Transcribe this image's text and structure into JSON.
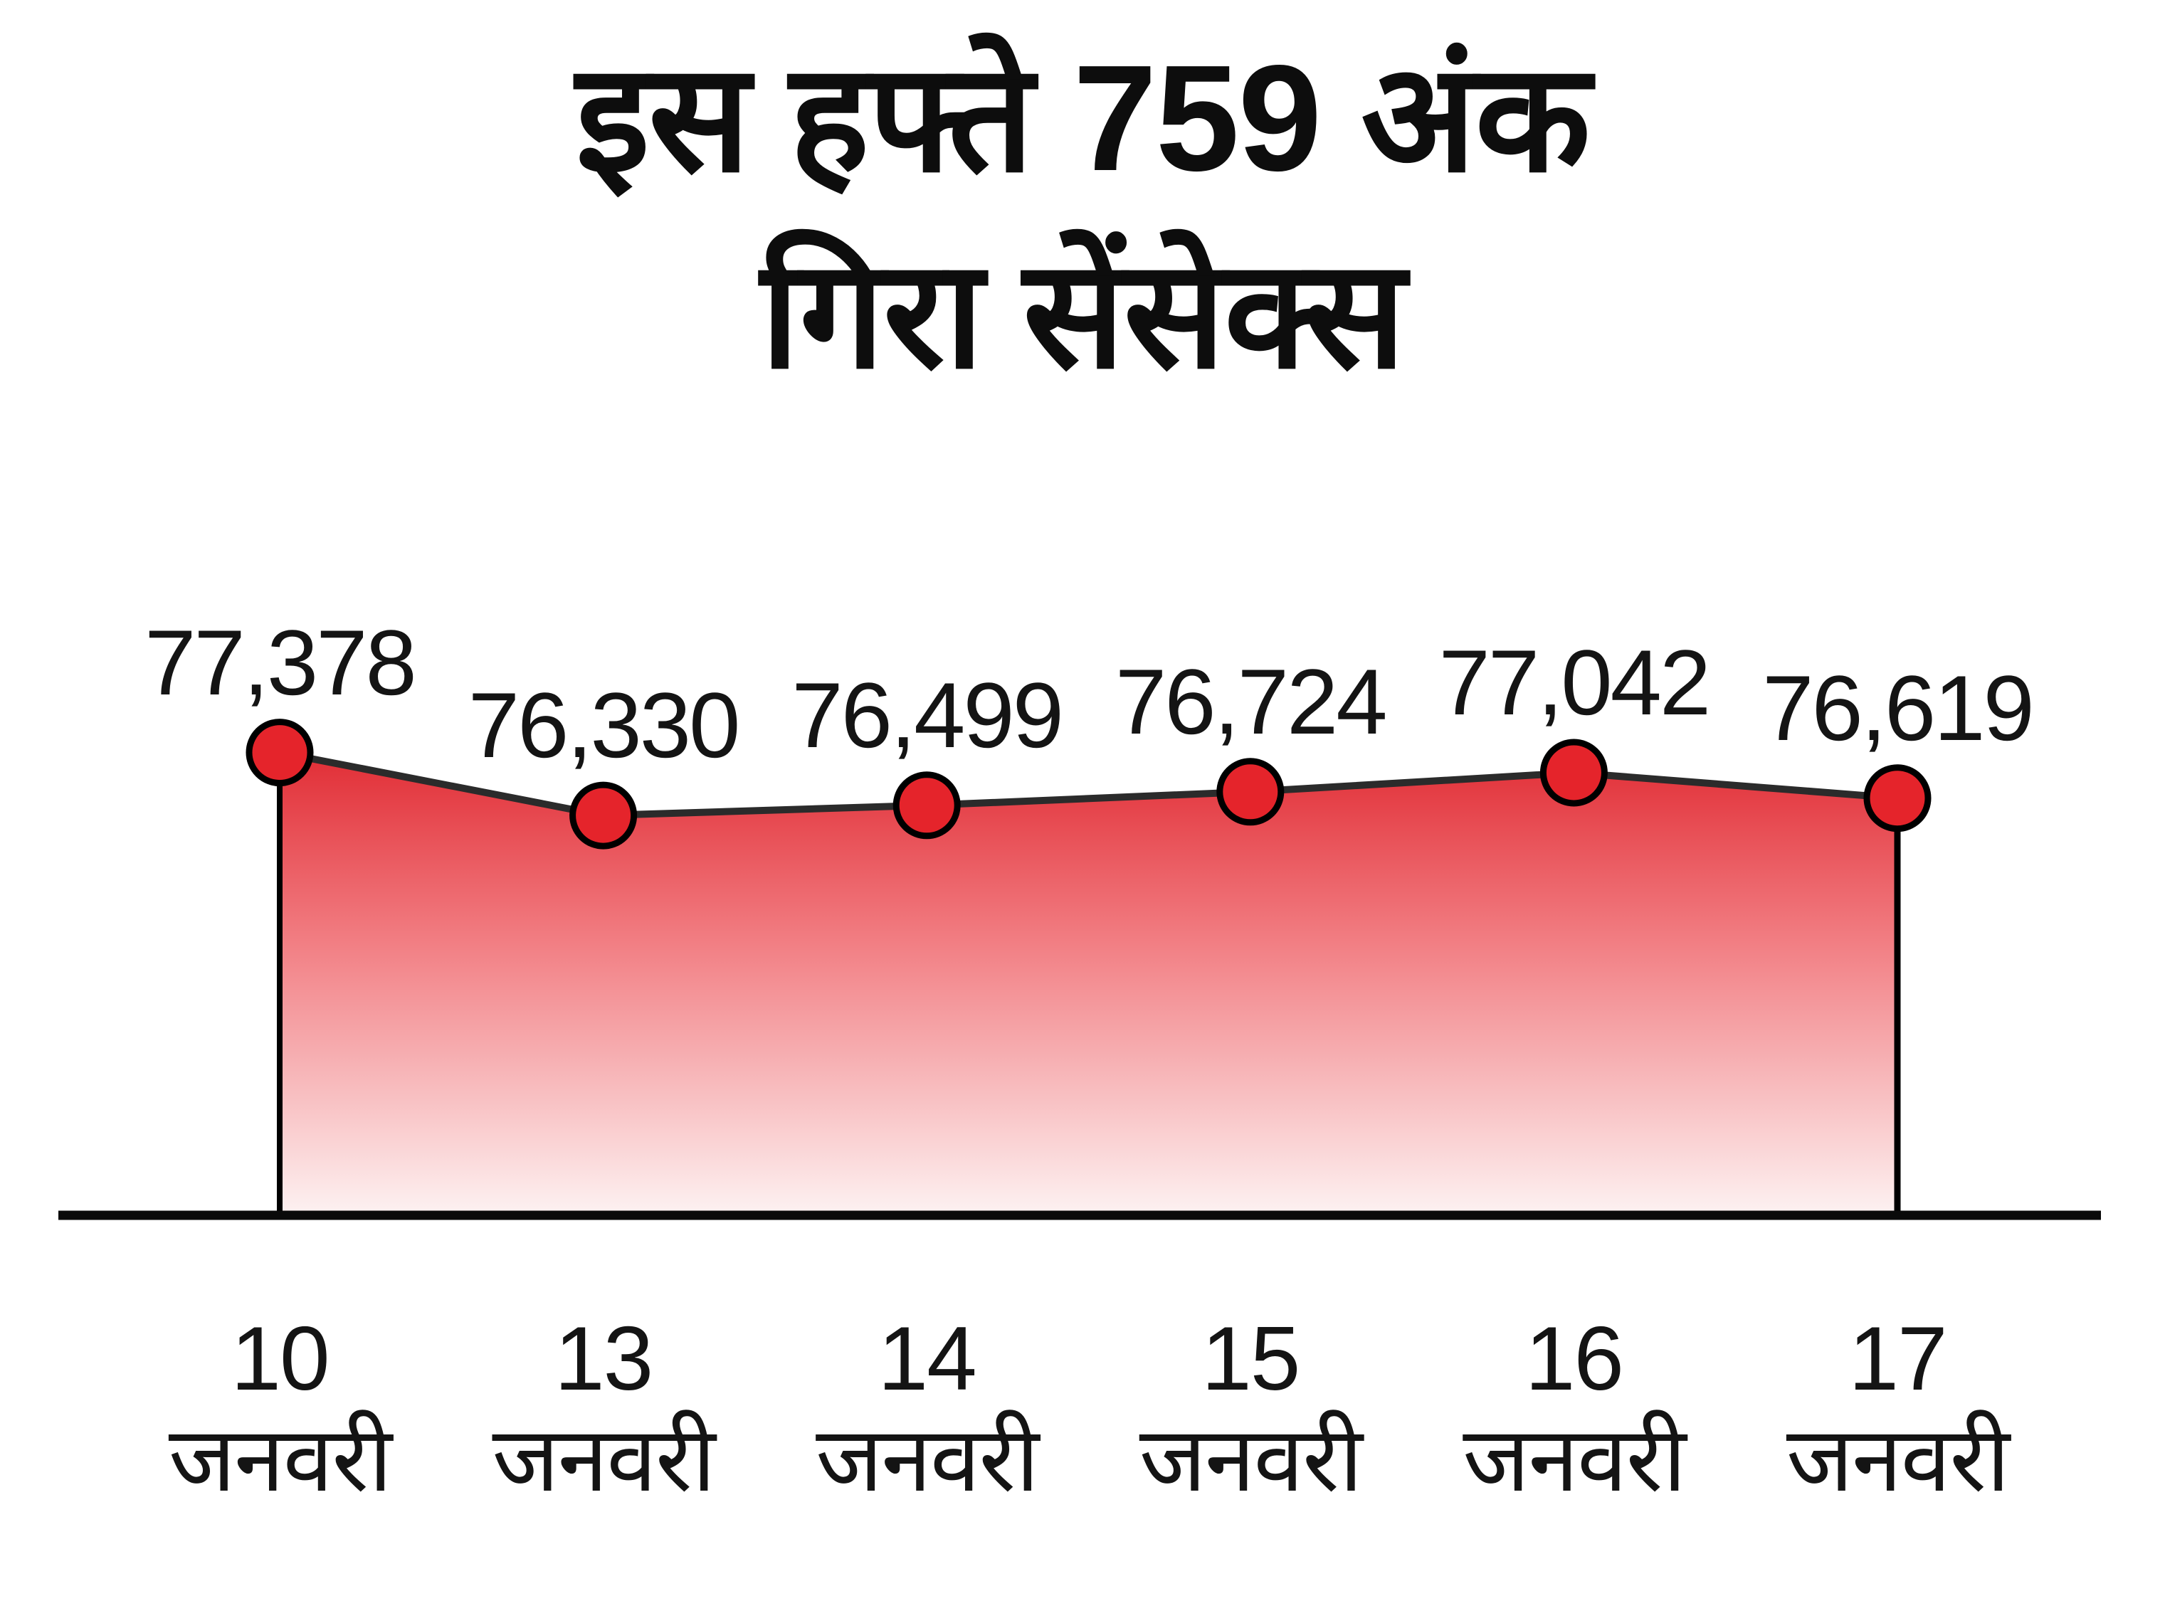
{
  "title": {
    "line1": "इस हफ्ते 759 अंक",
    "line2": "गिरा सेंसेक्स"
  },
  "chart_data": {
    "type": "area",
    "title": "इस हफ्ते 759 अंक गिरा सेंसेक्स",
    "weekly_change_points_shown_in_title": 759,
    "series": [
      {
        "name": "सेंसेक्स",
        "values": [
          77378,
          76330,
          76499,
          76724,
          77042,
          76619
        ]
      }
    ],
    "point_labels": [
      "77,378",
      "76,330",
      "76,499",
      "76,724",
      "77,042",
      "76,619"
    ],
    "x_ticks": [
      {
        "day": "10",
        "month": "जनवरी"
      },
      {
        "day": "13",
        "month": "जनवरी"
      },
      {
        "day": "14",
        "month": "जनवरी"
      },
      {
        "day": "15",
        "month": "जनवरी"
      },
      {
        "day": "16",
        "month": "जनवरी"
      },
      {
        "day": "17",
        "month": "जनवरी"
      }
    ],
    "xlabel": "",
    "ylabel": "",
    "ylim": [
      76330,
      77378
    ],
    "grid": false,
    "legend": false,
    "colors": {
      "point_fill": "#e5242b",
      "point_stroke": "#000000",
      "line": "#2b2b2b",
      "area_top": "#e12d35",
      "area_mid": "#f28085",
      "area_bottom": "#fdf2f2",
      "axis": "#0a0a0a",
      "text": "#111111"
    }
  }
}
